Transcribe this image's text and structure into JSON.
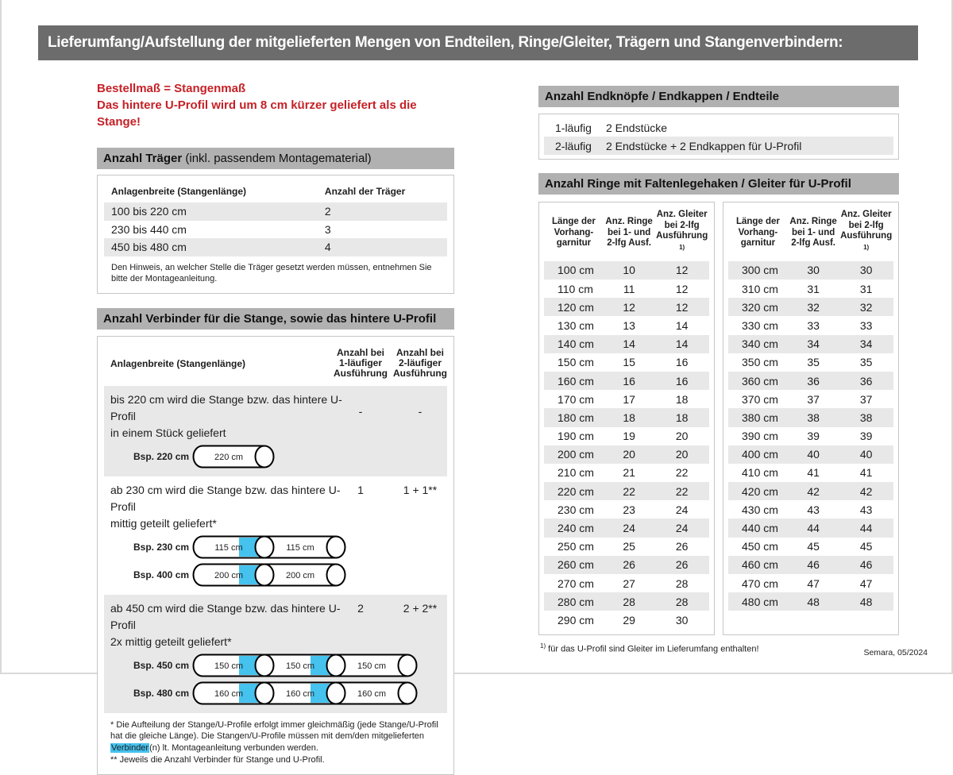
{
  "page": {
    "title": "Lieferumfang/Aufstellung der mitgelieferten Mengen von Endteilen, Ringe/Gleiter, Trägern und Stangenverbindern:",
    "footer": "Semara, 05/2024"
  },
  "colors": {
    "title_bar_gray": "#6c6c6c",
    "section_bar_gray": "#b1b1b1",
    "accent_red": "#c52127",
    "row_shade": "#e8e8e8",
    "connector_cyan": "#45c2ee"
  },
  "left": {
    "note_line1": "Bestellmaß = Stangenmaß",
    "note_line2": "Das hintere U-Profil wird um 8 cm kürzer geliefert als die Stange!",
    "traeger": {
      "header_bold": "Anzahl Träger",
      "header_rest": " (inkl. passendem Montagematerial)",
      "col1": "Anlagenbreite (Stangenlänge)",
      "col2": "Anzahl der Träger",
      "rows": [
        {
          "range": "100 bis 220 cm",
          "count": "2"
        },
        {
          "range": "230 bis 440 cm",
          "count": "3"
        },
        {
          "range": "450 bis 480 cm",
          "count": "4"
        }
      ],
      "note": "Den Hinweis, an welcher Stelle die Träger gesetzt werden müssen, entnehmen Sie bitte der Montageanleitung."
    },
    "verbinder": {
      "header": "Anzahl Verbinder für die Stange, sowie das hintere U-Profil",
      "col1": "Anlagenbreite (Stangenlänge)",
      "col2_lines": [
        "Anzahl bei",
        "1-läufiger",
        "Ausführung"
      ],
      "col3_lines": [
        "Anzahl bei",
        "2-läufiger",
        "Ausführung"
      ],
      "rows": [
        {
          "line1": "bis 220 cm wird die Stange bzw. das hintere U-Profil",
          "line2": "in einem Stück geliefert",
          "count1": "-",
          "count2": "-",
          "examples": [
            {
              "label": "Bsp. 220 cm",
              "segments": [
                "220 cm"
              ]
            }
          ]
        },
        {
          "line1": "ab 230 cm wird die Stange bzw. das hintere U-Profil",
          "line2": "mittig geteilt geliefert*",
          "count1": "1",
          "count2": "1 + 1**",
          "examples": [
            {
              "label": "Bsp. 230 cm",
              "segments": [
                "115 cm",
                "115 cm"
              ]
            },
            {
              "label": "Bsp. 400 cm",
              "segments": [
                "200 cm",
                "200 cm"
              ]
            }
          ]
        },
        {
          "line1": "ab 450 cm wird die Stange bzw. das hintere U-Profil",
          "line2": "2x mittig geteilt geliefert*",
          "count1": "2",
          "count2": "2 + 2**",
          "examples": [
            {
              "label": "Bsp. 450 cm",
              "segments": [
                "150 cm",
                "150 cm",
                "150 cm"
              ]
            },
            {
              "label": "Bsp. 480 cm",
              "segments": [
                "160 cm",
                "160 cm",
                "160 cm"
              ]
            }
          ]
        }
      ],
      "footnote1_pre": "* Die Aufteilung der Stange/U-Profile erfolgt immer gleichmäßig (jede Stange/U-Profil hat die gleiche Länge). Die Stangen/U-Profile müssen mit dem/den mitgelieferten ",
      "footnote1_highlight": "Verbinder",
      "footnote1_post": "(n) lt. Montageanleitung verbunden werden.",
      "footnote2": "** Jeweils die Anzahl Verbinder für Stange und U-Profil."
    }
  },
  "right": {
    "endteile": {
      "header": "Anzahl Endknöpfe / Endkappen / Endteile",
      "rows": [
        {
          "type": "1-läufig",
          "content": "2 Endstücke"
        },
        {
          "type": "2-läufig",
          "content": "2 Endstücke + 2 Endkappen für U-Profil"
        }
      ]
    },
    "ringe": {
      "header": "Anzahl Ringe mit Faltenlegehaken / Gleiter für U-Profil",
      "col1_lines": [
        "Länge der",
        "Vorhang-",
        "garnitur"
      ],
      "col2_lines": [
        "Anz. Ringe",
        "bei 1- und",
        "2-lfg Ausf."
      ],
      "col3_lines": [
        "Anz. Gleiter",
        "bei 2-lfg",
        "Ausführung"
      ],
      "col3_sup": "1)",
      "left_rows": [
        [
          "100 cm",
          "10",
          "12"
        ],
        [
          "110 cm",
          "11",
          "12"
        ],
        [
          "120 cm",
          "12",
          "12"
        ],
        [
          "130 cm",
          "13",
          "14"
        ],
        [
          "140 cm",
          "14",
          "14"
        ],
        [
          "150 cm",
          "15",
          "16"
        ],
        [
          "160 cm",
          "16",
          "16"
        ],
        [
          "170 cm",
          "17",
          "18"
        ],
        [
          "180 cm",
          "18",
          "18"
        ],
        [
          "190 cm",
          "19",
          "20"
        ],
        [
          "200 cm",
          "20",
          "20"
        ],
        [
          "210 cm",
          "21",
          "22"
        ],
        [
          "220 cm",
          "22",
          "22"
        ],
        [
          "230 cm",
          "23",
          "24"
        ],
        [
          "240 cm",
          "24",
          "24"
        ],
        [
          "250 cm",
          "25",
          "26"
        ],
        [
          "260 cm",
          "26",
          "26"
        ],
        [
          "270 cm",
          "27",
          "28"
        ],
        [
          "280 cm",
          "28",
          "28"
        ],
        [
          "290 cm",
          "29",
          "30"
        ]
      ],
      "right_rows": [
        [
          "300 cm",
          "30",
          "30"
        ],
        [
          "310 cm",
          "31",
          "31"
        ],
        [
          "320 cm",
          "32",
          "32"
        ],
        [
          "330 cm",
          "33",
          "33"
        ],
        [
          "340 cm",
          "34",
          "34"
        ],
        [
          "350 cm",
          "35",
          "35"
        ],
        [
          "360 cm",
          "36",
          "36"
        ],
        [
          "370 cm",
          "37",
          "37"
        ],
        [
          "380 cm",
          "38",
          "38"
        ],
        [
          "390 cm",
          "39",
          "39"
        ],
        [
          "400 cm",
          "40",
          "40"
        ],
        [
          "410 cm",
          "41",
          "41"
        ],
        [
          "420 cm",
          "42",
          "42"
        ],
        [
          "430 cm",
          "43",
          "43"
        ],
        [
          "440 cm",
          "44",
          "44"
        ],
        [
          "450 cm",
          "45",
          "45"
        ],
        [
          "460 cm",
          "46",
          "46"
        ],
        [
          "470 cm",
          "47",
          "47"
        ],
        [
          "480 cm",
          "48",
          "48"
        ]
      ],
      "footnote_sup": "1)",
      "footnote": " für das U-Profil sind Gleiter im Lieferumfang enthalten!"
    }
  }
}
